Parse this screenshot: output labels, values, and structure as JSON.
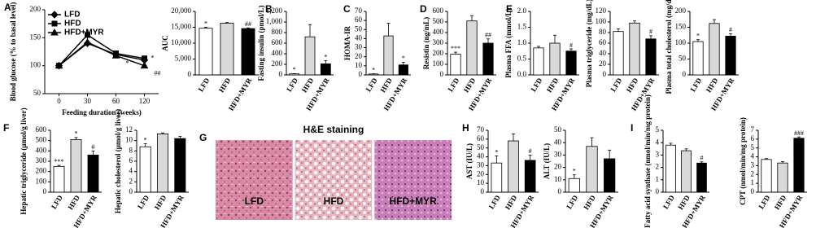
{
  "chart_data": [
    {
      "type": "line",
      "panel": "A",
      "ylabel": "Blood glucose (% to basal level)",
      "xlabel": "Feeding duration (weeks)",
      "categories": [
        "0",
        "30",
        "60",
        "120"
      ],
      "ylim": [
        50,
        200
      ],
      "yticks": [
        50,
        100,
        150,
        200
      ],
      "series": [
        {
          "name": "LFD",
          "marker": "diamond",
          "color": "#000000",
          "values": [
            100,
            140,
            120,
            110
          ],
          "errors": [
            0,
            6,
            3,
            4
          ],
          "marks": [
            null,
            null,
            null,
            "*"
          ]
        },
        {
          "name": "HFD",
          "marker": "square",
          "color": "#000000",
          "values": [
            100,
            155,
            122,
            113
          ],
          "errors": [
            0,
            10,
            3,
            4
          ],
          "marks": [
            null,
            null,
            null,
            null
          ]
        },
        {
          "name": "HFD+MYR",
          "marker": "triangle",
          "color": "#000000",
          "values": [
            100,
            142,
            118,
            100
          ],
          "errors": [
            0,
            4,
            3,
            3
          ],
          "marks": [
            null,
            null,
            "*",
            "##"
          ]
        }
      ]
    },
    {
      "type": "bar",
      "ylabel": "AUC",
      "categories": [
        "LFD",
        "HFD",
        "HFD+MYR"
      ],
      "colors": [
        "#ffffff",
        "#d9d9d9",
        "#000000"
      ],
      "values": [
        14700,
        16300,
        14600
      ],
      "errors": [
        300,
        200,
        200
      ],
      "marks": [
        "*",
        null,
        "##"
      ],
      "ylim": [
        0,
        20000
      ],
      "yticks": [
        0,
        {
          "value": 5000,
          "label": "5,000"
        },
        {
          "value": 10000,
          "label": "10,000"
        },
        {
          "value": 15000,
          "label": "15,000"
        },
        {
          "value": 20000,
          "label": "20,000"
        }
      ]
    },
    {
      "type": "bar",
      "panel": "B",
      "ylabel": "Fasting insulin (pmol/L)",
      "categories": [
        "LFD",
        "HFD",
        "HFD+MYR"
      ],
      "colors": [
        "#ffffff",
        "#d9d9d9",
        "#000000"
      ],
      "values": [
        20,
        720,
        210
      ],
      "errors": [
        5,
        230,
        60
      ],
      "marks": [
        "*",
        null,
        "*"
      ],
      "ylim": [
        0,
        1200
      ],
      "yticks": [
        0,
        200,
        400,
        600,
        800,
        {
          "value": 1000,
          "label": "1,000"
        },
        {
          "value": 1200,
          "label": "1,200"
        }
      ]
    },
    {
      "type": "bar",
      "panel": "C",
      "ylabel": "HOMA-IR",
      "categories": [
        "LFD",
        "HFD",
        "HFD+MYR"
      ],
      "colors": [
        "#ffffff",
        "#d9d9d9",
        "#000000"
      ],
      "values": [
        1,
        43,
        11
      ],
      "errors": [
        0.3,
        14,
        3
      ],
      "marks": [
        "*",
        null,
        "*"
      ],
      "ylim": [
        0,
        70
      ],
      "yticks": [
        0,
        10,
        20,
        30,
        40,
        50,
        60,
        70
      ]
    },
    {
      "type": "bar",
      "panel": "D",
      "ylabel": "Resistin (ng/mL)",
      "categories": [
        "LFD",
        "HFD",
        "HFD+MYR"
      ],
      "colors": [
        "#ffffff",
        "#d9d9d9",
        "#000000"
      ],
      "values": [
        195,
        510,
        300
      ],
      "errors": [
        20,
        50,
        40
      ],
      "marks": [
        "***",
        null,
        "##"
      ],
      "ylim": [
        0,
        600
      ],
      "yticks": [
        0,
        100,
        200,
        300,
        400,
        500,
        600
      ]
    },
    {
      "type": "bar",
      "panel": "E",
      "ylabel": "Plasma FFA (mmol/L)",
      "categories": [
        "LFD",
        "HFD",
        "HFD+MYR"
      ],
      "colors": [
        "#ffffff",
        "#d9d9d9",
        "#000000"
      ],
      "values": [
        0.85,
        1.0,
        0.75
      ],
      "errors": [
        0.05,
        0.25,
        0.07
      ],
      "marks": [
        null,
        null,
        "#"
      ],
      "ylim": [
        0,
        2
      ],
      "yticks": [
        {
          "value": 0,
          "label": "0.0"
        },
        0.5,
        {
          "value": 1,
          "label": "1.0"
        },
        1.5,
        {
          "value": 2,
          "label": "2.0"
        }
      ]
    },
    {
      "type": "bar",
      "ylabel": "Plasma triglyceride (mg/dL)",
      "categories": [
        "LFD",
        "HFD",
        "HFD+MYR"
      ],
      "colors": [
        "#ffffff",
        "#d9d9d9",
        "#000000"
      ],
      "values": [
        82,
        98,
        68
      ],
      "errors": [
        5,
        4,
        6
      ],
      "marks": [
        null,
        null,
        "#"
      ],
      "ylim": [
        0,
        120
      ],
      "yticks": [
        0,
        20,
        40,
        60,
        80,
        100,
        120
      ]
    },
    {
      "type": "bar",
      "ylabel": "Plasma total cholesterol (mg/dL)",
      "categories": [
        "LFD",
        "HFD",
        "HFD+MYR"
      ],
      "colors": [
        "#ffffff",
        "#d9d9d9",
        "#000000"
      ],
      "values": [
        105,
        162,
        122
      ],
      "errors": [
        6,
        12,
        8
      ],
      "marks": [
        "*",
        null,
        "#"
      ],
      "ylim": [
        0,
        200
      ],
      "yticks": [
        0,
        50,
        100,
        150,
        200
      ]
    },
    {
      "type": "bar",
      "panel": "F",
      "ylabel": "Hepatic triglyceride (μmol/g liver)",
      "categories": [
        "LFD",
        "HFD",
        "HFD+MYR"
      ],
      "colors": [
        "#ffffff",
        "#d9d9d9",
        "#000000"
      ],
      "values": [
        250,
        510,
        360
      ],
      "errors": [
        10,
        20,
        40
      ],
      "marks": [
        "***",
        "*",
        "#"
      ],
      "ylim": [
        0,
        600
      ],
      "yticks": [
        0,
        100,
        200,
        300,
        400,
        500,
        600
      ]
    },
    {
      "type": "bar",
      "ylabel": "Hepatic cholesterol (μmol/g liver)",
      "categories": [
        "LFD",
        "HFD",
        "HFD+MYR"
      ],
      "colors": [
        "#ffffff",
        "#d9d9d9",
        "#000000"
      ],
      "values": [
        8.8,
        11.3,
        10.4
      ],
      "errors": [
        0.6,
        0.2,
        0.4
      ],
      "marks": [
        "*",
        null,
        null
      ],
      "ylim": [
        0,
        12
      ],
      "yticks": [
        0,
        2,
        4,
        6,
        8,
        10,
        12
      ]
    },
    {
      "type": "image",
      "panel": "G",
      "title": "H&E staining",
      "labels": [
        "LFD",
        "HFD",
        "HFD+MYR"
      ]
    },
    {
      "type": "bar",
      "panel": "H",
      "ylabel": "AST (IU/L)",
      "categories": [
        "LFD",
        "HFD",
        "HFD+MYR"
      ],
      "colors": [
        "#ffffff",
        "#d9d9d9",
        "#000000"
      ],
      "values": [
        33,
        58,
        36
      ],
      "errors": [
        8,
        8,
        6
      ],
      "marks": [
        "*",
        null,
        "#"
      ],
      "ylim": [
        0,
        70
      ],
      "yticks": [
        0,
        10,
        20,
        30,
        40,
        50,
        60,
        70
      ]
    },
    {
      "type": "bar",
      "ylabel": "ALT (IU/L)",
      "categories": [
        "LFD",
        "HFD",
        "HFD+MYR"
      ],
      "colors": [
        "#ffffff",
        "#d9d9d9",
        "#000000"
      ],
      "values": [
        11,
        37,
        27
      ],
      "errors": [
        3,
        7,
        7
      ],
      "marks": [
        "*",
        null,
        null
      ],
      "ylim": [
        0,
        50
      ],
      "yticks": [
        0,
        10,
        20,
        30,
        40,
        50
      ]
    },
    {
      "type": "bar",
      "panel": "I",
      "ylabel": "Fatty acid synthase (nmol/min/mg protein)",
      "categories": [
        "LFD",
        "HFD",
        "HFD+MYR"
      ],
      "colors": [
        "#ffffff",
        "#d9d9d9",
        "#000000"
      ],
      "values": [
        3.8,
        3.35,
        2.35
      ],
      "errors": [
        0.15,
        0.15,
        0.1
      ],
      "marks": [
        null,
        null,
        "#"
      ],
      "ylim": [
        0,
        5
      ],
      "yticks": [
        0,
        1,
        2,
        3,
        4,
        5
      ]
    },
    {
      "type": "bar",
      "ylabel": "CPT (nmol/min/mg protein)",
      "categories": [
        "LFD",
        "HFD",
        "HFD+MYR"
      ],
      "colors": [
        "#ffffff",
        "#d9d9d9",
        "#000000"
      ],
      "values": [
        3.7,
        3.3,
        6.1
      ],
      "errors": [
        0.1,
        0.15,
        0.15
      ],
      "marks": [
        null,
        null,
        "###"
      ],
      "ylim": [
        0,
        7
      ],
      "yticks": [
        0,
        1,
        2,
        3,
        4,
        5,
        6,
        7
      ]
    }
  ]
}
